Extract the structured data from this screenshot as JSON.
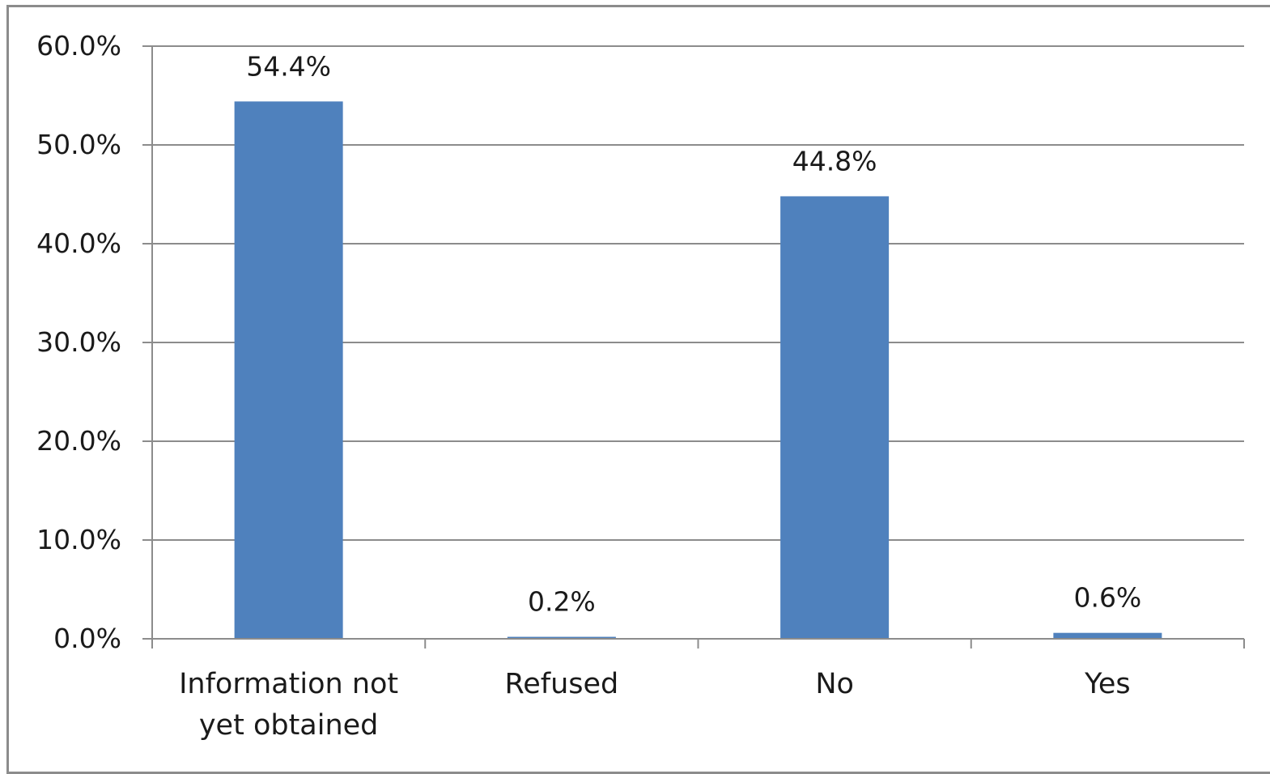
{
  "chart_data": {
    "type": "bar",
    "categories": [
      [
        "Information not",
        "yet obtained"
      ],
      [
        "Refused"
      ],
      [
        "No"
      ],
      [
        "Yes"
      ]
    ],
    "values": [
      54.4,
      0.2,
      44.8,
      0.6
    ],
    "data_labels": [
      "54.4%",
      "0.2%",
      "44.8%",
      "0.6%"
    ],
    "y_ticks": [
      "0.0%",
      "10.0%",
      "20.0%",
      "30.0%",
      "40.0%",
      "50.0%",
      "60.0%"
    ],
    "ylim": [
      0,
      60
    ],
    "grid": true,
    "legend": "none",
    "title": "",
    "xlabel": "",
    "ylabel": "",
    "colors": {
      "bar": "#4f81bd",
      "grid": "#8c8c8c",
      "axis": "#8c8c8c",
      "frame": "#8c8c8c"
    }
  }
}
